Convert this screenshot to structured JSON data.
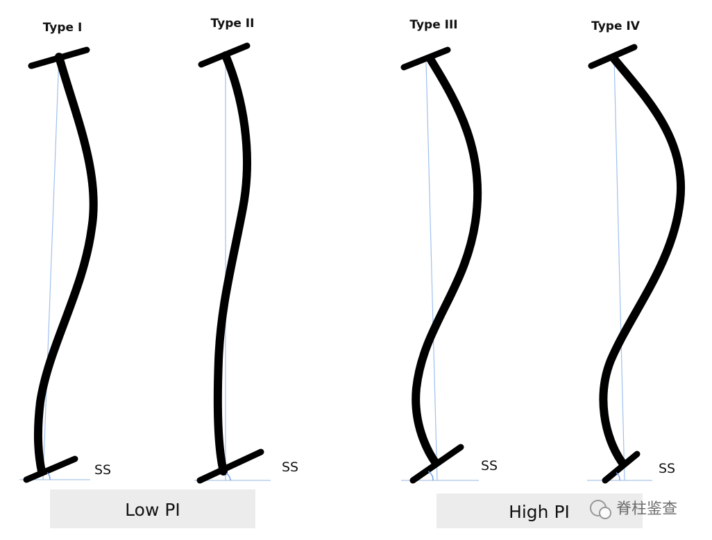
{
  "types": [
    {
      "label": "Type I",
      "sacral_label": "SS"
    },
    {
      "label": "Type II",
      "sacral_label": "SS"
    },
    {
      "label": "Type III",
      "sacral_label": "SS"
    },
    {
      "label": "Type IV",
      "sacral_label": "SS"
    }
  ],
  "groups": [
    {
      "label": "Low PI"
    },
    {
      "label": "High PI"
    }
  ],
  "watermark": "脊柱鉴查"
}
